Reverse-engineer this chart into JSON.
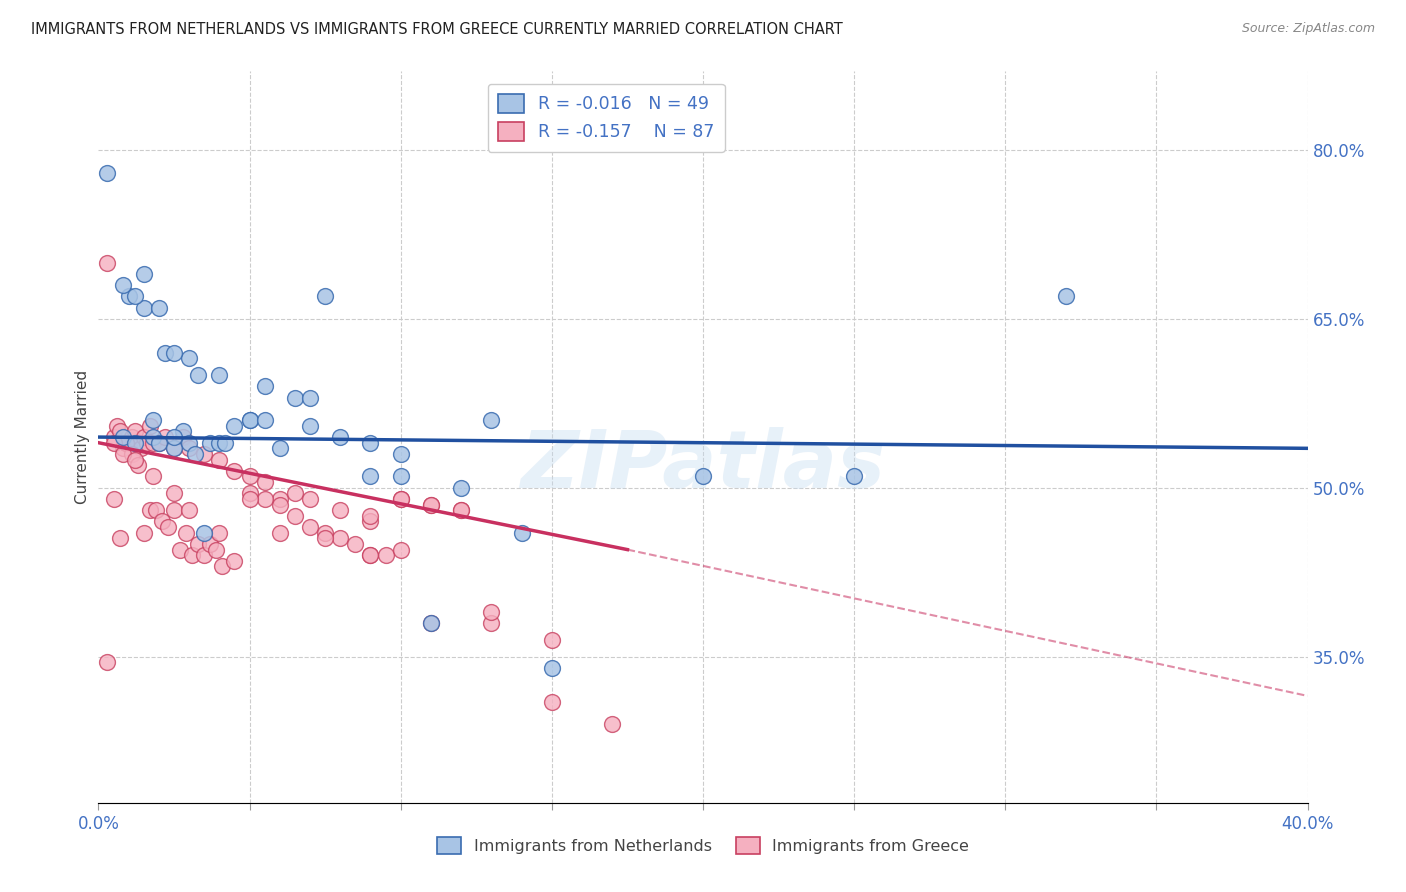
{
  "title": "IMMIGRANTS FROM NETHERLANDS VS IMMIGRANTS FROM GREECE CURRENTLY MARRIED CORRELATION CHART",
  "source": "Source: ZipAtlas.com",
  "ylabel": "Currently Married",
  "xlim": [
    0.0,
    0.4
  ],
  "ylim": [
    0.22,
    0.87
  ],
  "xtick_positions": [
    0.0,
    0.05,
    0.1,
    0.15,
    0.2,
    0.25,
    0.3,
    0.35,
    0.4
  ],
  "xticklabels": [
    "0.0%",
    "",
    "",
    "",
    "",
    "",
    "",
    "",
    "40.0%"
  ],
  "yticks_right": [
    0.8,
    0.65,
    0.5,
    0.35
  ],
  "ytick_labels_right": [
    "80.0%",
    "65.0%",
    "50.0%",
    "35.0%"
  ],
  "R_netherlands": -0.016,
  "N_netherlands": 49,
  "R_greece": -0.157,
  "N_greece": 87,
  "color_nl_fill": "#A8C4E5",
  "color_nl_edge": "#3A6CB0",
  "color_gr_fill": "#F5B0C0",
  "color_gr_edge": "#C84060",
  "color_nl_line": "#2050A0",
  "color_gr_line": "#C83060",
  "watermark": "ZIPatlas",
  "nl_line_x0": 0.0,
  "nl_line_y0": 0.545,
  "nl_line_x1": 0.4,
  "nl_line_y1": 0.535,
  "gr_line_x0": 0.0,
  "gr_line_y0": 0.54,
  "gr_line_xsolid": 0.175,
  "gr_line_ysolid": 0.445,
  "gr_line_x1": 0.4,
  "gr_line_y1": 0.315,
  "netherlands_x": [
    0.003,
    0.008,
    0.012,
    0.015,
    0.018,
    0.02,
    0.022,
    0.025,
    0.028,
    0.03,
    0.033,
    0.037,
    0.04,
    0.045,
    0.05,
    0.055,
    0.06,
    0.065,
    0.07,
    0.08,
    0.09,
    0.1,
    0.11,
    0.13,
    0.15,
    0.01,
    0.015,
    0.02,
    0.025,
    0.03,
    0.035,
    0.04,
    0.05,
    0.07,
    0.09,
    0.12,
    0.008,
    0.012,
    0.018,
    0.025,
    0.032,
    0.042,
    0.055,
    0.075,
    0.1,
    0.14,
    0.2,
    0.32,
    0.25
  ],
  "netherlands_y": [
    0.78,
    0.545,
    0.54,
    0.69,
    0.545,
    0.54,
    0.62,
    0.535,
    0.55,
    0.615,
    0.6,
    0.54,
    0.6,
    0.555,
    0.56,
    0.59,
    0.535,
    0.58,
    0.555,
    0.545,
    0.51,
    0.53,
    0.38,
    0.56,
    0.34,
    0.67,
    0.66,
    0.66,
    0.62,
    0.54,
    0.46,
    0.54,
    0.56,
    0.58,
    0.54,
    0.5,
    0.68,
    0.67,
    0.56,
    0.545,
    0.53,
    0.54,
    0.56,
    0.67,
    0.51,
    0.46,
    0.51,
    0.67,
    0.51
  ],
  "greece_x": [
    0.003,
    0.005,
    0.006,
    0.007,
    0.008,
    0.009,
    0.01,
    0.011,
    0.012,
    0.013,
    0.014,
    0.015,
    0.016,
    0.017,
    0.018,
    0.02,
    0.022,
    0.025,
    0.028,
    0.03,
    0.035,
    0.04,
    0.045,
    0.05,
    0.055,
    0.06,
    0.065,
    0.07,
    0.08,
    0.09,
    0.1,
    0.11,
    0.12,
    0.003,
    0.005,
    0.007,
    0.009,
    0.011,
    0.013,
    0.015,
    0.017,
    0.019,
    0.021,
    0.023,
    0.025,
    0.027,
    0.029,
    0.031,
    0.033,
    0.035,
    0.037,
    0.039,
    0.041,
    0.045,
    0.05,
    0.055,
    0.06,
    0.065,
    0.07,
    0.075,
    0.08,
    0.085,
    0.09,
    0.095,
    0.1,
    0.005,
    0.008,
    0.012,
    0.018,
    0.025,
    0.03,
    0.04,
    0.05,
    0.06,
    0.075,
    0.09,
    0.11,
    0.13,
    0.15,
    0.09,
    0.1,
    0.11,
    0.12,
    0.13,
    0.15,
    0.17
  ],
  "greece_y": [
    0.345,
    0.545,
    0.555,
    0.55,
    0.535,
    0.54,
    0.54,
    0.545,
    0.55,
    0.54,
    0.535,
    0.545,
    0.54,
    0.555,
    0.54,
    0.54,
    0.545,
    0.535,
    0.545,
    0.535,
    0.53,
    0.525,
    0.515,
    0.51,
    0.505,
    0.49,
    0.495,
    0.49,
    0.48,
    0.47,
    0.49,
    0.485,
    0.48,
    0.7,
    0.49,
    0.455,
    0.54,
    0.53,
    0.52,
    0.46,
    0.48,
    0.48,
    0.47,
    0.465,
    0.48,
    0.445,
    0.46,
    0.44,
    0.45,
    0.44,
    0.45,
    0.445,
    0.43,
    0.435,
    0.495,
    0.49,
    0.485,
    0.475,
    0.465,
    0.46,
    0.455,
    0.45,
    0.44,
    0.44,
    0.445,
    0.54,
    0.53,
    0.525,
    0.51,
    0.495,
    0.48,
    0.46,
    0.49,
    0.46,
    0.455,
    0.44,
    0.38,
    0.38,
    0.31,
    0.475,
    0.49,
    0.485,
    0.48,
    0.39,
    0.365,
    0.29
  ]
}
